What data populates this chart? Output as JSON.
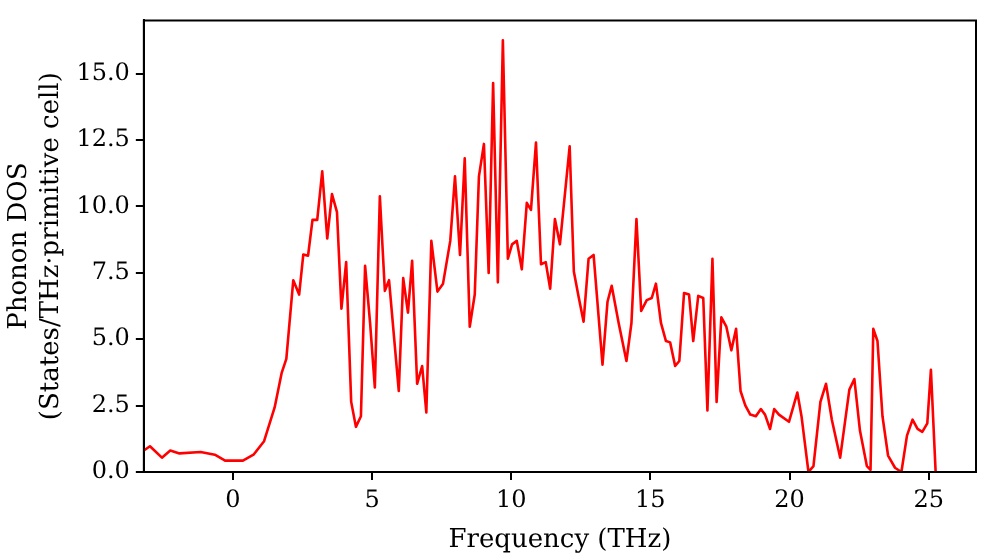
{
  "chart_data": {
    "type": "line",
    "xlabel": "Frequency (THz)",
    "ylabel": "Phonon DOS\n(States/THz·primitive cell)",
    "xlim": [
      -3.2,
      26.7
    ],
    "ylim": [
      0,
      17
    ],
    "xticks": [
      0,
      5,
      10,
      15,
      20,
      25
    ],
    "yticks": [
      {
        "value": 0,
        "label": "0.0"
      },
      {
        "value": 2.5,
        "label": "2.5"
      },
      {
        "value": 5,
        "label": "5.0"
      },
      {
        "value": 7.5,
        "label": "7.5"
      },
      {
        "value": 10,
        "label": "10.0"
      },
      {
        "value": 12.5,
        "label": "12.5"
      },
      {
        "value": 15,
        "label": "15.0"
      }
    ],
    "grid": false,
    "legend": false,
    "marker": "none",
    "line_style": "solid",
    "series": [
      {
        "color": "#ff0000",
        "x": [
          -3.2,
          -2.98,
          -2.55,
          -2.25,
          -1.92,
          -1.16,
          -0.65,
          -0.28,
          0.36,
          0.74,
          1.12,
          1.5,
          1.75,
          1.92,
          2.17,
          2.38,
          2.53,
          2.7,
          2.86,
          3.03,
          3.21,
          3.39,
          3.56,
          3.74,
          3.9,
          4.07,
          4.25,
          4.42,
          4.6,
          4.75,
          4.93,
          5.1,
          5.28,
          5.46,
          5.61,
          5.96,
          6.12,
          6.29,
          6.44,
          6.62,
          6.8,
          6.95,
          7.13,
          7.35,
          7.55,
          7.81,
          7.98,
          8.16,
          8.33,
          8.51,
          8.69,
          8.84,
          9.02,
          9.19,
          9.35,
          9.52,
          9.7,
          9.88,
          10.03,
          10.2,
          10.38,
          10.56,
          10.71,
          10.89,
          11.07,
          11.24,
          11.4,
          11.57,
          11.75,
          12.1,
          12.25,
          12.43,
          12.6,
          12.78,
          12.96,
          13.28,
          13.46,
          13.61,
          13.86,
          14.14,
          14.32,
          14.5,
          14.67,
          14.87,
          15.05,
          15.2,
          15.38,
          15.56,
          15.71,
          15.89,
          16.04,
          16.21,
          16.39,
          16.54,
          16.72,
          16.9,
          17.05,
          17.23,
          17.38,
          17.55,
          17.73,
          17.91,
          18.08,
          18.24,
          18.41,
          18.59,
          18.79,
          18.97,
          19.12,
          19.3,
          19.45,
          19.62,
          19.98,
          20.28,
          20.43,
          20.68,
          20.86,
          21.11,
          21.31,
          21.52,
          21.82,
          22.15,
          22.33,
          22.53,
          22.78,
          22.91,
          23.01,
          23.16,
          23.34,
          23.54,
          23.79,
          24.02,
          24.22,
          24.42,
          24.6,
          24.77,
          24.95,
          25.08,
          25.25
        ],
        "values": [
          0.81,
          0.97,
          0.54,
          0.81,
          0.7,
          0.75,
          0.65,
          0.43,
          0.43,
          0.65,
          1.16,
          2.43,
          3.72,
          4.26,
          7.22,
          6.68,
          8.19,
          8.14,
          9.49,
          9.49,
          11.32,
          8.79,
          10.46,
          9.78,
          6.15,
          7.9,
          2.64,
          1.7,
          2.1,
          7.76,
          5.6,
          3.18,
          10.38,
          6.82,
          7.22,
          3.05,
          7.3,
          6.0,
          7.95,
          3.32,
          3.99,
          2.24,
          8.7,
          6.79,
          7.09,
          8.7,
          11.13,
          8.17,
          11.81,
          5.47,
          6.68,
          11.13,
          12.35,
          7.49,
          14.64,
          7.14,
          16.25,
          8.03,
          8.57,
          8.7,
          7.63,
          10.13,
          9.87,
          12.4,
          7.82,
          7.9,
          6.9,
          9.52,
          8.57,
          12.26,
          7.55,
          6.55,
          5.66,
          8.03,
          8.17,
          4.04,
          6.41,
          7.01,
          5.61,
          4.18,
          5.61,
          9.52,
          6.06,
          6.47,
          6.55,
          7.09,
          5.61,
          4.93,
          4.88,
          3.99,
          4.18,
          6.74,
          6.68,
          4.93,
          6.63,
          6.55,
          2.32,
          8.03,
          2.64,
          5.82,
          5.47,
          4.58,
          5.39,
          3.05,
          2.51,
          2.16,
          2.1,
          2.37,
          2.16,
          1.62,
          2.37,
          2.16,
          1.89,
          2.99,
          2.1,
          0,
          0.22,
          2.64,
          3.32,
          1.97,
          0.54,
          3.1,
          3.5,
          1.56,
          0.22,
          0.08,
          5.39,
          4.93,
          2.1,
          0.62,
          0.16,
          0,
          1.37,
          1.97,
          1.62,
          1.51,
          1.83,
          3.85,
          0
        ]
      }
    ]
  }
}
